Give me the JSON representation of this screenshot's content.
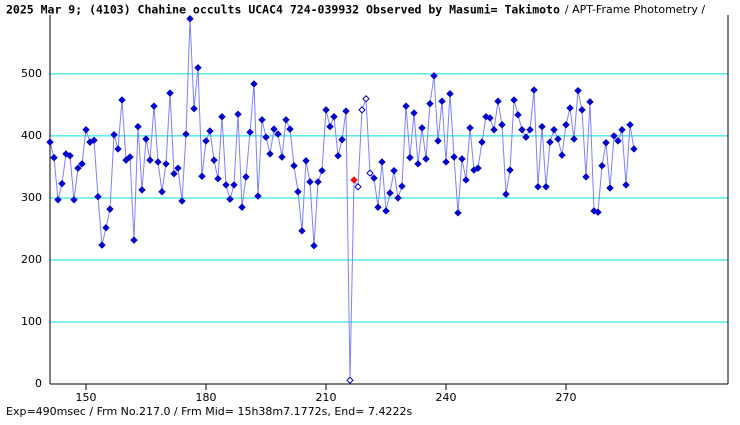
{
  "chart_data": {
    "type": "line",
    "title": "2025 Mar 9; (4103) Chahine occults UCAC4 724-039932 Observed by Masumi= Takimoto",
    "subtitle": "/ APT-Frame Photometry /",
    "footer": "Exp=490msec / Frm No.217.0 / Frm Mid= 15h38m7.1772s, End= 7.4222s",
    "x": [
      141,
      142,
      143,
      144,
      145,
      146,
      147,
      148,
      149,
      150,
      151,
      152,
      153,
      154,
      155,
      156,
      157,
      158,
      159,
      160,
      161,
      162,
      163,
      164,
      165,
      166,
      167,
      168,
      169,
      170,
      171,
      172,
      173,
      174,
      175,
      176,
      177,
      178,
      179,
      180,
      181,
      182,
      183,
      184,
      185,
      186,
      187,
      188,
      189,
      190,
      191,
      192,
      193,
      194,
      195,
      196,
      197,
      198,
      199,
      200,
      201,
      202,
      203,
      204,
      205,
      206,
      207,
      208,
      209,
      210,
      211,
      212,
      213,
      214,
      215,
      216,
      217,
      218,
      219,
      220,
      221,
      222,
      223,
      224,
      225,
      226,
      227,
      228,
      229,
      230,
      231,
      232,
      233,
      234,
      235,
      236,
      237,
      238,
      239,
      240,
      241,
      242,
      243,
      244,
      245,
      246,
      247,
      248,
      249,
      250,
      251,
      252,
      253,
      254,
      255,
      256,
      257,
      258,
      259,
      260,
      261,
      262,
      263,
      264,
      265,
      266,
      267,
      268,
      269,
      270,
      271,
      272,
      273,
      274,
      275,
      276,
      277,
      278,
      279,
      280,
      281,
      282,
      283,
      284,
      285,
      286,
      287
    ],
    "series": [
      {
        "color": "#0000cc",
        "line_color": "#8080ff",
        "values": [
          390,
          365,
          297,
          323,
          371,
          368,
          297,
          348,
          355,
          410,
          390,
          393,
          302,
          224,
          252,
          282,
          402,
          379,
          458,
          361,
          366,
          232,
          415,
          313,
          395,
          361,
          448,
          358,
          310,
          355,
          469,
          339,
          348,
          295,
          403,
          589,
          444,
          510,
          335,
          392,
          408,
          361,
          331,
          431,
          321,
          298,
          321,
          435,
          285,
          334,
          406,
          484,
          303,
          426,
          398,
          371,
          411,
          403,
          366,
          426,
          411,
          352,
          310,
          247,
          360,
          326,
          223,
          326,
          344,
          442,
          415,
          431,
          368,
          394,
          440,
          6,
          329,
          318,
          442,
          460,
          340,
          332,
          285,
          358,
          279,
          308,
          344,
          300,
          319,
          448,
          365,
          437,
          355,
          413,
          363,
          452,
          497,
          392,
          456,
          358,
          468,
          366,
          276,
          363,
          329,
          413,
          345,
          348,
          390,
          431,
          429,
          410,
          456,
          418,
          306,
          345,
          458,
          434,
          410,
          398,
          410,
          474,
          318,
          415,
          318,
          390,
          410,
          395,
          369,
          418,
          445,
          395,
          473,
          442,
          334,
          455,
          279,
          277,
          352,
          389,
          316,
          400,
          392,
          410,
          321,
          418,
          379
        ]
      }
    ],
    "open_markers": [
      75,
      77,
      78,
      79,
      80
    ],
    "highlight": {
      "index": 76,
      "color": "#ff0000"
    },
    "xlim": [
      141,
      310.5
    ],
    "ylim": [
      0,
      595
    ],
    "xticks": [
      150,
      180,
      210,
      240,
      270
    ],
    "yticks": [
      0,
      100,
      200,
      300,
      400,
      500
    ],
    "grid_color": "#00e0e0",
    "grid": true
  }
}
